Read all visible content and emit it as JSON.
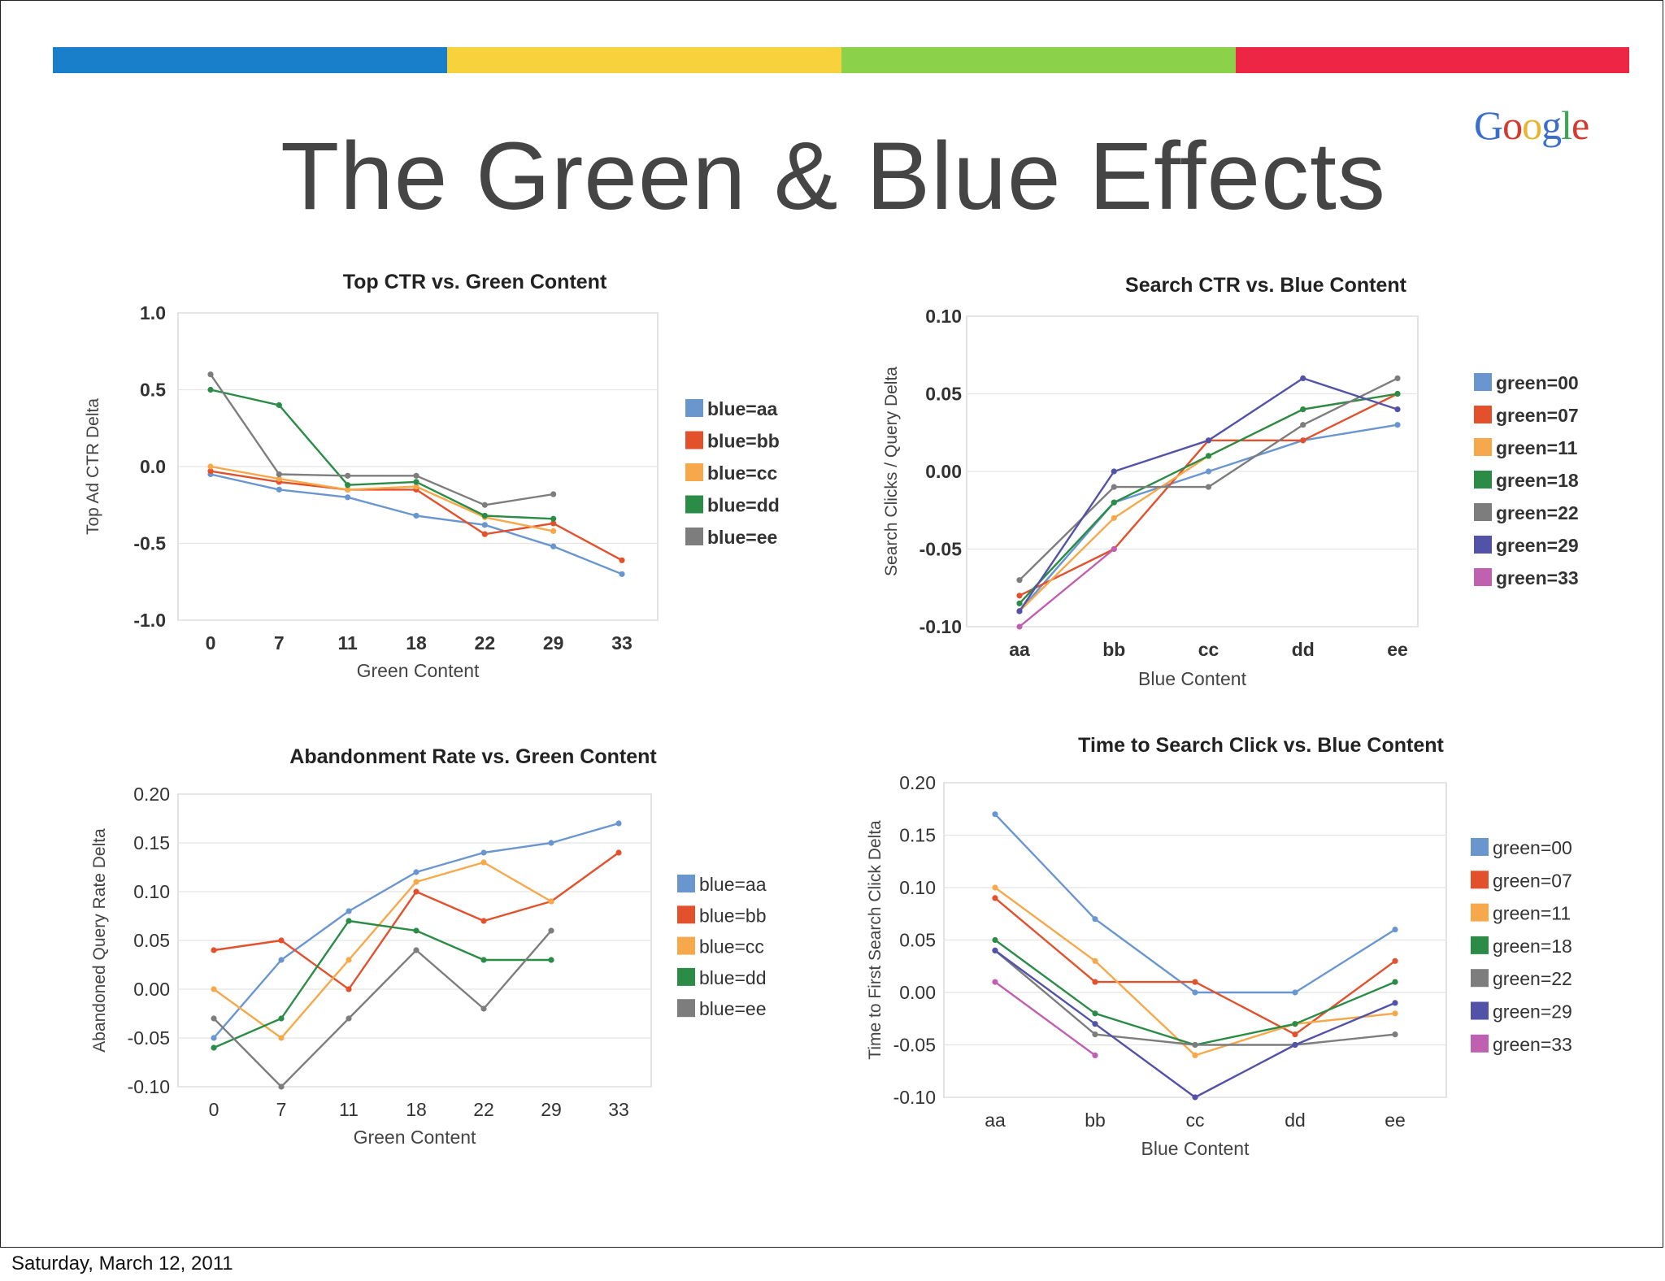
{
  "slide": {
    "title": "The Green & Blue Effects",
    "brand_letters": [
      "G",
      "o",
      "o",
      "g",
      "l",
      "e"
    ],
    "brand_colors": [
      "#3b6ecc",
      "#d43a2f",
      "#e8b531",
      "#3b6ecc",
      "#3aa757",
      "#d43a2f"
    ],
    "bar_colors": [
      "#1a7fcb",
      "#f8d23c",
      "#8bd14a",
      "#ee2646"
    ],
    "footer": "Saturday, March 12, 2011"
  },
  "chart_data": [
    {
      "type": "line",
      "title": "Top CTR vs. Green Content",
      "xlabel": "Green Content",
      "ylabel": "Top Ad CTR Delta",
      "categories": [
        "0",
        "7",
        "11",
        "18",
        "22",
        "29",
        "33"
      ],
      "ylim": [
        -1.0,
        1.0
      ],
      "yticks": [
        "1.0",
        "0.5",
        "0.0",
        "-0.5",
        "-1.0"
      ],
      "series": [
        {
          "name": "blue=aa",
          "color": "#6a96d0",
          "values": [
            -0.05,
            -0.15,
            -0.2,
            -0.32,
            -0.38,
            -0.52,
            -0.7
          ]
        },
        {
          "name": "blue=bb",
          "color": "#e3512c",
          "values": [
            -0.03,
            -0.1,
            -0.15,
            -0.15,
            -0.44,
            -0.37,
            -0.61
          ]
        },
        {
          "name": "blue=cc",
          "color": "#f6a84a",
          "values": [
            0.0,
            -0.08,
            -0.15,
            -0.13,
            -0.33,
            -0.42,
            null
          ]
        },
        {
          "name": "blue=dd",
          "color": "#2a8c46",
          "values": [
            0.5,
            0.4,
            -0.12,
            -0.1,
            -0.32,
            -0.34,
            null
          ]
        },
        {
          "name": "blue=ee",
          "color": "#7d7d7d",
          "values": [
            0.6,
            -0.05,
            -0.06,
            -0.06,
            -0.25,
            -0.18,
            null
          ]
        }
      ]
    },
    {
      "type": "line",
      "title": "Search CTR vs. Blue Content",
      "xlabel": "Blue Content",
      "ylabel": "Search Clicks / Query Delta",
      "categories": [
        "aa",
        "bb",
        "cc",
        "dd",
        "ee"
      ],
      "ylim": [
        -0.1,
        0.1
      ],
      "yticks": [
        "0.10",
        "0.05",
        "0.00",
        "-0.05",
        "-0.10"
      ],
      "series": [
        {
          "name": "green=00",
          "color": "#6a96d0",
          "values": [
            -0.09,
            -0.02,
            0.0,
            0.02,
            0.03
          ]
        },
        {
          "name": "green=07",
          "color": "#e3512c",
          "values": [
            -0.08,
            -0.05,
            0.02,
            0.02,
            0.05
          ]
        },
        {
          "name": "green=11",
          "color": "#f6a84a",
          "values": [
            -0.09,
            -0.03,
            0.01,
            0.04,
            0.05
          ]
        },
        {
          "name": "green=18",
          "color": "#2a8c46",
          "values": [
            -0.085,
            -0.02,
            0.01,
            0.04,
            0.05
          ]
        },
        {
          "name": "green=22",
          "color": "#7d7d7d",
          "values": [
            -0.07,
            -0.01,
            -0.01,
            0.03,
            0.06
          ]
        },
        {
          "name": "green=29",
          "color": "#5252a8",
          "values": [
            -0.09,
            0.0,
            0.02,
            0.06,
            0.04
          ]
        },
        {
          "name": "green=33",
          "color": "#c060b0",
          "values": [
            -0.1,
            -0.05,
            null,
            null,
            null
          ]
        }
      ]
    },
    {
      "type": "line",
      "title": "Abandonment Rate vs. Green Content",
      "xlabel": "Green Content",
      "ylabel": "Abandoned Query Rate Delta",
      "categories": [
        "0",
        "7",
        "11",
        "18",
        "22",
        "29",
        "33"
      ],
      "ylim": [
        -0.1,
        0.2
      ],
      "yticks": [
        "0.20",
        "0.15",
        "0.10",
        "0.05",
        "0.00",
        "-0.05",
        "-0.10"
      ],
      "series": [
        {
          "name": "blue=aa",
          "color": "#6a96d0",
          "values": [
            -0.05,
            0.03,
            0.08,
            0.12,
            0.14,
            0.15,
            0.17
          ]
        },
        {
          "name": "blue=bb",
          "color": "#e3512c",
          "values": [
            0.04,
            0.05,
            0.0,
            0.1,
            0.07,
            0.09,
            0.14
          ]
        },
        {
          "name": "blue=cc",
          "color": "#f6a84a",
          "values": [
            0.0,
            -0.05,
            0.03,
            0.11,
            0.13,
            0.09,
            null
          ]
        },
        {
          "name": "blue=dd",
          "color": "#2a8c46",
          "values": [
            -0.06,
            -0.03,
            0.07,
            0.06,
            0.03,
            0.03,
            null
          ]
        },
        {
          "name": "blue=ee",
          "color": "#7d7d7d",
          "values": [
            -0.03,
            -0.1,
            -0.03,
            0.04,
            -0.02,
            0.06,
            null
          ]
        }
      ]
    },
    {
      "type": "line",
      "title": "Time to Search Click vs. Blue Content",
      "xlabel": "Blue Content",
      "ylabel": "Time to First Search Click Delta",
      "categories": [
        "aa",
        "bb",
        "cc",
        "dd",
        "ee"
      ],
      "ylim": [
        -0.1,
        0.2
      ],
      "yticks": [
        "0.20",
        "0.15",
        "0.10",
        "0.05",
        "0.00",
        "-0.05",
        "-0.10"
      ],
      "series": [
        {
          "name": "green=00",
          "color": "#6a96d0",
          "values": [
            0.17,
            0.07,
            0.0,
            0.0,
            0.06
          ]
        },
        {
          "name": "green=07",
          "color": "#e3512c",
          "values": [
            0.09,
            0.01,
            0.01,
            -0.04,
            0.03
          ]
        },
        {
          "name": "green=11",
          "color": "#f6a84a",
          "values": [
            0.1,
            0.03,
            -0.06,
            -0.03,
            -0.02
          ]
        },
        {
          "name": "green=18",
          "color": "#2a8c46",
          "values": [
            0.05,
            -0.02,
            -0.05,
            -0.03,
            0.01
          ]
        },
        {
          "name": "green=22",
          "color": "#7d7d7d",
          "values": [
            0.04,
            -0.04,
            -0.05,
            -0.05,
            -0.04
          ]
        },
        {
          "name": "green=29",
          "color": "#5252a8",
          "values": [
            0.04,
            -0.03,
            -0.1,
            -0.05,
            -0.01
          ]
        },
        {
          "name": "green=33",
          "color": "#c060b0",
          "values": [
            0.01,
            -0.06,
            null,
            null,
            null
          ]
        }
      ]
    }
  ]
}
